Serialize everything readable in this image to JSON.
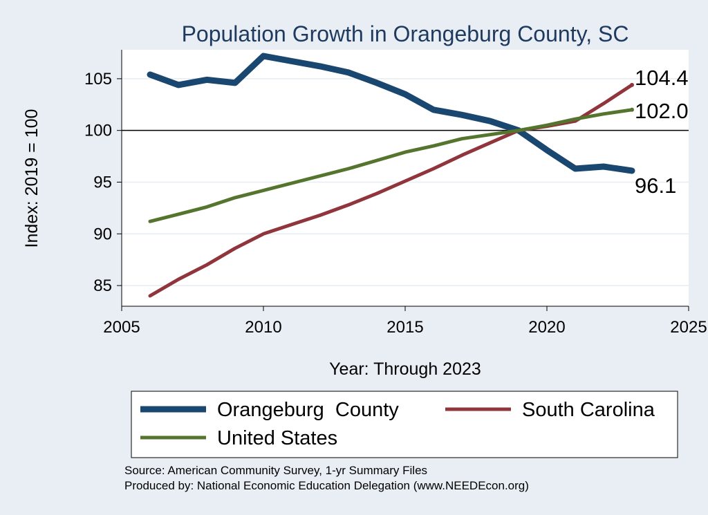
{
  "chart_data": {
    "type": "line",
    "title": "Population Growth in Orangeburg County, SC",
    "xlabel": "Year: Through 2023",
    "ylabel": "Index: 2019 = 100",
    "xlim": [
      2005,
      2025
    ],
    "ylim": [
      83,
      107.8
    ],
    "xticks": [
      2005,
      2010,
      2015,
      2020,
      2025
    ],
    "yticks": [
      85,
      90,
      95,
      100,
      105
    ],
    "reference_line": 100,
    "grid": true,
    "legend_position": "bottom",
    "x": [
      2006,
      2007,
      2008,
      2009,
      2010,
      2011,
      2012,
      2013,
      2014,
      2015,
      2016,
      2017,
      2018,
      2019,
      2020,
      2021,
      2022,
      2023
    ],
    "series": [
      {
        "name": "Orangeburg  County",
        "color": "#1a476f",
        "values": [
          105.4,
          104.4,
          104.9,
          104.6,
          107.2,
          106.7,
          106.2,
          105.6,
          104.6,
          103.5,
          102.0,
          101.5,
          100.9,
          100.0,
          98.1,
          96.3,
          96.5,
          96.1
        ],
        "end_label": "96.1"
      },
      {
        "name": "South Carolina",
        "color": "#90353b",
        "values": [
          84.0,
          85.6,
          87.0,
          88.6,
          90.0,
          90.9,
          91.8,
          92.8,
          93.9,
          95.1,
          96.3,
          97.6,
          98.8,
          100.0,
          100.4,
          100.9,
          102.6,
          104.4
        ],
        "end_label": "104.4"
      },
      {
        "name": "United States",
        "color": "#55752f",
        "values": [
          91.2,
          91.9,
          92.6,
          93.5,
          94.2,
          94.9,
          95.6,
          96.3,
          97.1,
          97.9,
          98.5,
          99.2,
          99.6,
          100.0,
          100.5,
          101.1,
          101.6,
          102.0
        ],
        "end_label": "102.0"
      }
    ]
  },
  "source": {
    "line1": "Source: American Community Survey, 1-yr Summary Files",
    "line2": "Produced by: National Economic Education Delegation (www.NEEDEcon.org)"
  }
}
